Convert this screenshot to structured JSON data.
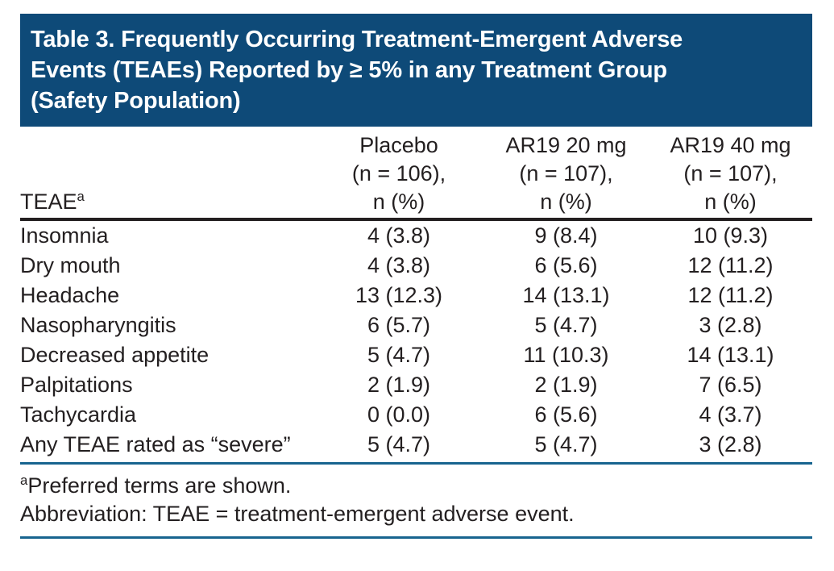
{
  "header": {
    "title_lines": [
      "Table 3. Frequently Occurring Treatment-Emergent Adverse",
      "Events (TEAEs) Reported by ≥ 5% in any Treatment Group",
      "(Safety Population)"
    ]
  },
  "table": {
    "row_header": {
      "label": "TEAE",
      "superscript": "a"
    },
    "columns": [
      {
        "name": "Placebo",
        "n": "(n = 106),",
        "unit": "n (%)"
      },
      {
        "name": "AR19 20 mg",
        "n": "(n = 107),",
        "unit": "n (%)"
      },
      {
        "name": "AR19 40 mg",
        "n": "(n = 107),",
        "unit": "n (%)"
      }
    ],
    "rows": [
      {
        "term": "Insomnia",
        "values": [
          "4 (3.8)",
          "9 (8.4)",
          "10 (9.3)"
        ]
      },
      {
        "term": "Dry mouth",
        "values": [
          "4 (3.8)",
          "6 (5.6)",
          "12 (11.2)"
        ]
      },
      {
        "term": "Headache",
        "values": [
          "13 (12.3)",
          "14 (13.1)",
          "12 (11.2)"
        ]
      },
      {
        "term": "Nasopharyngitis",
        "values": [
          "6 (5.7)",
          "5 (4.7)",
          "3 (2.8)"
        ]
      },
      {
        "term": "Decreased appetite",
        "values": [
          "5 (4.7)",
          "11 (10.3)",
          "14 (13.1)"
        ]
      },
      {
        "term": "Palpitations",
        "values": [
          "2 (1.9)",
          "2 (1.9)",
          "7 (6.5)"
        ]
      },
      {
        "term": "Tachycardia",
        "values": [
          "0 (0.0)",
          "6 (5.6)",
          "4 (3.7)"
        ]
      },
      {
        "term": "Any TEAE rated as “severe”",
        "values": [
          "5 (4.7)",
          "5 (4.7)",
          "3 (2.8)"
        ]
      }
    ]
  },
  "footnotes": {
    "note_superscript": "a",
    "note_text": "Preferred terms are shown.",
    "abbreviation": "Abbreviation: TEAE = treatment-emergent adverse event."
  },
  "colors": {
    "title_bar_bg": "#0e4a78",
    "title_text": "#ffffff",
    "body_text": "#231f20",
    "header_rule": "#231f20",
    "accent_rule": "#17648f"
  }
}
